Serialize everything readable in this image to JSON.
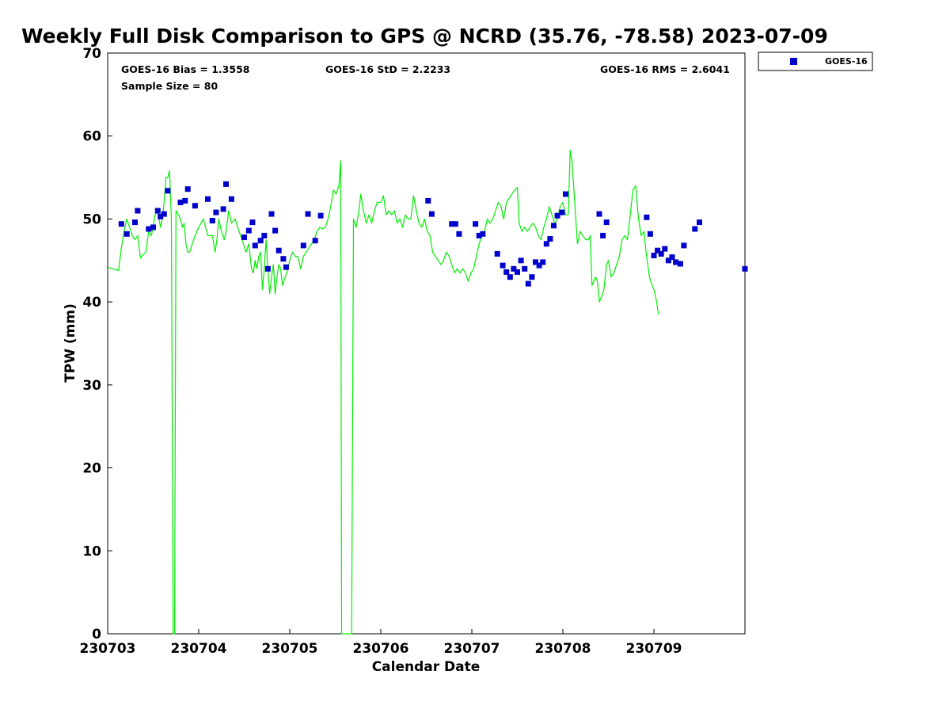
{
  "chart_data": {
    "type": "scatter",
    "title": "Weekly Full Disk Comparison to GPS @ NCRD (35.76, -78.58) 2023-07-09",
    "xlabel": "Calendar Date",
    "ylabel": "TPW (mm)",
    "xlim": [
      0,
      7
    ],
    "ylim": [
      0,
      70
    ],
    "x_ticks": [
      0,
      1,
      2,
      3,
      4,
      5,
      6
    ],
    "x_tick_labels": [
      "230703",
      "230704",
      "230705",
      "230706",
      "230707",
      "230708",
      "230709"
    ],
    "y_ticks": [
      0,
      10,
      20,
      30,
      40,
      50,
      60,
      70
    ],
    "y_tick_labels": [
      "0",
      "10",
      "20",
      "30",
      "40",
      "50",
      "60",
      "70"
    ],
    "legend_position": "outside-top-right",
    "stats": {
      "bias": "GOES-16 Bias = 1.3558",
      "std": "GOES-16 StD = 2.2233",
      "rms": "GOES-16 RMS = 2.6041",
      "sample_size": "Sample Size = 80"
    },
    "gps_line": {
      "color": "#00ee00",
      "points": [
        [
          0.0,
          44.2
        ],
        [
          0.05,
          44.0
        ],
        [
          0.12,
          43.8
        ],
        [
          0.15,
          46.5
        ],
        [
          0.18,
          48.5
        ],
        [
          0.21,
          50.0
        ],
        [
          0.24,
          49.0
        ],
        [
          0.27,
          48.0
        ],
        [
          0.3,
          47.5
        ],
        [
          0.33,
          48.0
        ],
        [
          0.36,
          45.3
        ],
        [
          0.39,
          45.7
        ],
        [
          0.42,
          46.0
        ],
        [
          0.45,
          48.5
        ],
        [
          0.48,
          48.0
        ],
        [
          0.5,
          49.0
        ],
        [
          0.52,
          50.5
        ],
        [
          0.55,
          51.0
        ],
        [
          0.58,
          49.0
        ],
        [
          0.6,
          50.0
        ],
        [
          0.62,
          52.0
        ],
        [
          0.64,
          55.0
        ],
        [
          0.66,
          55.0
        ],
        [
          0.68,
          55.8
        ],
        [
          0.7,
          50.0
        ],
        [
          0.72,
          0.0
        ],
        [
          0.735,
          0.0
        ],
        [
          0.75,
          51.0
        ],
        [
          0.78,
          50.5
        ],
        [
          0.8,
          50.0
        ],
        [
          0.82,
          49.0
        ],
        [
          0.84,
          49.5
        ],
        [
          0.86,
          47.0
        ],
        [
          0.88,
          46.0
        ],
        [
          0.9,
          46.0
        ],
        [
          0.93,
          47.0
        ],
        [
          0.96,
          48.0
        ],
        [
          1.0,
          49.0
        ],
        [
          1.05,
          50.0
        ],
        [
          1.1,
          48.0
        ],
        [
          1.15,
          48.0
        ],
        [
          1.18,
          46.0
        ],
        [
          1.2,
          47.5
        ],
        [
          1.22,
          50.0
        ],
        [
          1.25,
          48.5
        ],
        [
          1.28,
          47.5
        ],
        [
          1.3,
          48.5
        ],
        [
          1.33,
          51.0
        ],
        [
          1.36,
          49.5
        ],
        [
          1.4,
          50.0
        ],
        [
          1.43,
          49.0
        ],
        [
          1.46,
          48.0
        ],
        [
          1.49,
          47.0
        ],
        [
          1.52,
          46.0
        ],
        [
          1.55,
          47.0
        ],
        [
          1.58,
          44.0
        ],
        [
          1.6,
          43.5
        ],
        [
          1.62,
          45.0
        ],
        [
          1.64,
          44.0
        ],
        [
          1.66,
          45.5
        ],
        [
          1.68,
          46.0
        ],
        [
          1.7,
          41.5
        ],
        [
          1.72,
          44.0
        ],
        [
          1.74,
          47.5
        ],
        [
          1.76,
          44.0
        ],
        [
          1.78,
          41.0
        ],
        [
          1.8,
          43.0
        ],
        [
          1.82,
          44.5
        ],
        [
          1.84,
          41.0
        ],
        [
          1.86,
          43.0
        ],
        [
          1.88,
          44.5
        ],
        [
          1.9,
          44.0
        ],
        [
          1.92,
          42.0
        ],
        [
          1.95,
          43.0
        ],
        [
          1.98,
          44.0
        ],
        [
          2.0,
          45.0
        ],
        [
          2.03,
          46.0
        ],
        [
          2.06,
          45.5
        ],
        [
          2.09,
          45.5
        ],
        [
          2.12,
          44.0
        ],
        [
          2.15,
          45.5
        ],
        [
          2.18,
          46.0
        ],
        [
          2.21,
          46.5
        ],
        [
          2.24,
          47.0
        ],
        [
          2.27,
          47.5
        ],
        [
          2.3,
          48.5
        ],
        [
          2.33,
          49.0
        ],
        [
          2.36,
          48.8
        ],
        [
          2.39,
          49.0
        ],
        [
          2.42,
          50.0
        ],
        [
          2.45,
          51.5
        ],
        [
          2.48,
          53.5
        ],
        [
          2.51,
          53.0
        ],
        [
          2.54,
          54.0
        ],
        [
          2.56,
          57.0
        ],
        [
          2.57,
          0.0
        ],
        [
          2.68,
          0.0
        ],
        [
          2.7,
          50.0
        ],
        [
          2.73,
          49.0
        ],
        [
          2.76,
          51.0
        ],
        [
          2.78,
          53.0
        ],
        [
          2.81,
          51.0
        ],
        [
          2.84,
          49.5
        ],
        [
          2.87,
          50.5
        ],
        [
          2.9,
          49.5
        ],
        [
          2.93,
          51.0
        ],
        [
          2.96,
          52.0
        ],
        [
          3.0,
          52.0
        ],
        [
          3.03,
          52.8
        ],
        [
          3.06,
          50.5
        ],
        [
          3.09,
          51.0
        ],
        [
          3.12,
          50.5
        ],
        [
          3.15,
          51.0
        ],
        [
          3.18,
          49.5
        ],
        [
          3.21,
          50.0
        ],
        [
          3.24,
          49.0
        ],
        [
          3.27,
          50.5
        ],
        [
          3.3,
          50.0
        ],
        [
          3.33,
          50.0
        ],
        [
          3.36,
          52.8
        ],
        [
          3.39,
          51.0
        ],
        [
          3.42,
          49.5
        ],
        [
          3.45,
          49.0
        ],
        [
          3.48,
          50.0
        ],
        [
          3.51,
          48.5
        ],
        [
          3.54,
          48.0
        ],
        [
          3.57,
          46.0
        ],
        [
          3.6,
          45.5
        ],
        [
          3.63,
          45.0
        ],
        [
          3.66,
          44.5
        ],
        [
          3.69,
          45.0
        ],
        [
          3.72,
          46.0
        ],
        [
          3.75,
          45.5
        ],
        [
          3.78,
          44.5
        ],
        [
          3.81,
          43.5
        ],
        [
          3.84,
          44.0
        ],
        [
          3.87,
          43.5
        ],
        [
          3.9,
          44.0
        ],
        [
          3.93,
          43.5
        ],
        [
          3.96,
          42.5
        ],
        [
          3.99,
          43.5
        ],
        [
          4.02,
          44.0
        ],
        [
          4.05,
          45.5
        ],
        [
          4.08,
          47.0
        ],
        [
          4.11,
          48.0
        ],
        [
          4.14,
          48.5
        ],
        [
          4.17,
          50.0
        ],
        [
          4.2,
          49.5
        ],
        [
          4.23,
          50.0
        ],
        [
          4.26,
          51.0
        ],
        [
          4.29,
          52.0
        ],
        [
          4.32,
          51.5
        ],
        [
          4.35,
          50.0
        ],
        [
          4.38,
          52.0
        ],
        [
          4.41,
          52.5
        ],
        [
          4.44,
          53.0
        ],
        [
          4.47,
          53.5
        ],
        [
          4.5,
          53.8
        ],
        [
          4.52,
          49.5
        ],
        [
          4.55,
          48.5
        ],
        [
          4.58,
          49.0
        ],
        [
          4.61,
          48.5
        ],
        [
          4.64,
          49.0
        ],
        [
          4.67,
          49.5
        ],
        [
          4.7,
          49.0
        ],
        [
          4.73,
          48.0
        ],
        [
          4.76,
          47.5
        ],
        [
          4.79,
          49.0
        ],
        [
          4.82,
          50.0
        ],
        [
          4.85,
          51.5
        ],
        [
          4.88,
          50.5
        ],
        [
          4.91,
          49.5
        ],
        [
          4.94,
          50.0
        ],
        [
          4.97,
          51.5
        ],
        [
          5.0,
          52.0
        ],
        [
          5.03,
          50.5
        ],
        [
          5.06,
          50.5
        ],
        [
          5.08,
          58.3
        ],
        [
          5.1,
          57.0
        ],
        [
          5.13,
          52.0
        ],
        [
          5.16,
          47.0
        ],
        [
          5.19,
          48.5
        ],
        [
          5.22,
          48.0
        ],
        [
          5.25,
          47.5
        ],
        [
          5.28,
          47.5
        ],
        [
          5.3,
          48.0
        ],
        [
          5.32,
          42.0
        ],
        [
          5.34,
          42.5
        ],
        [
          5.36,
          43.0
        ],
        [
          5.38,
          42.5
        ],
        [
          5.4,
          40.0
        ],
        [
          5.42,
          40.5
        ],
        [
          5.45,
          41.5
        ],
        [
          5.48,
          44.5
        ],
        [
          5.5,
          45.0
        ],
        [
          5.53,
          43.0
        ],
        [
          5.56,
          43.5
        ],
        [
          5.59,
          44.5
        ],
        [
          5.62,
          45.5
        ],
        [
          5.65,
          47.5
        ],
        [
          5.68,
          48.0
        ],
        [
          5.71,
          47.5
        ],
        [
          5.74,
          50.5
        ],
        [
          5.77,
          53.5
        ],
        [
          5.8,
          54.0
        ],
        [
          5.83,
          50.0
        ],
        [
          5.86,
          48.0
        ],
        [
          5.89,
          48.5
        ],
        [
          5.92,
          45.5
        ],
        [
          5.95,
          43.0
        ],
        [
          5.98,
          42.0
        ],
        [
          6.0,
          41.5
        ],
        [
          6.03,
          40.0
        ],
        [
          6.05,
          38.5
        ]
      ]
    },
    "series": [
      {
        "name": "GOES-16",
        "color": "#0000cc",
        "points": [
          [
            0.15,
            49.4
          ],
          [
            0.21,
            48.2
          ],
          [
            0.3,
            49.6
          ],
          [
            0.33,
            51.0
          ],
          [
            0.45,
            48.8
          ],
          [
            0.5,
            49.0
          ],
          [
            0.55,
            51.0
          ],
          [
            0.58,
            50.3
          ],
          [
            0.62,
            50.6
          ],
          [
            0.66,
            53.4
          ],
          [
            0.8,
            52.0
          ],
          [
            0.85,
            52.2
          ],
          [
            0.88,
            53.6
          ],
          [
            0.96,
            51.6
          ],
          [
            1.1,
            52.4
          ],
          [
            1.15,
            49.8
          ],
          [
            1.19,
            50.8
          ],
          [
            1.27,
            51.2
          ],
          [
            1.3,
            54.2
          ],
          [
            1.36,
            52.4
          ],
          [
            1.5,
            47.8
          ],
          [
            1.55,
            48.6
          ],
          [
            1.59,
            49.6
          ],
          [
            1.62,
            46.8
          ],
          [
            1.68,
            47.4
          ],
          [
            1.72,
            48.0
          ],
          [
            1.76,
            44.0
          ],
          [
            1.8,
            50.6
          ],
          [
            1.84,
            48.6
          ],
          [
            1.88,
            46.2
          ],
          [
            1.93,
            45.2
          ],
          [
            1.96,
            44.2
          ],
          [
            2.15,
            46.8
          ],
          [
            2.2,
            50.6
          ],
          [
            2.28,
            47.4
          ],
          [
            2.34,
            50.4
          ],
          [
            3.52,
            52.2
          ],
          [
            3.56,
            50.6
          ],
          [
            3.78,
            49.4
          ],
          [
            3.82,
            49.4
          ],
          [
            3.86,
            48.2
          ],
          [
            4.04,
            49.4
          ],
          [
            4.08,
            48.0
          ],
          [
            4.12,
            48.2
          ],
          [
            4.28,
            45.8
          ],
          [
            4.34,
            44.4
          ],
          [
            4.38,
            43.6
          ],
          [
            4.42,
            43.0
          ],
          [
            4.46,
            44.0
          ],
          [
            4.5,
            43.6
          ],
          [
            4.54,
            45.0
          ],
          [
            4.58,
            44.0
          ],
          [
            4.62,
            42.2
          ],
          [
            4.66,
            43.0
          ],
          [
            4.7,
            44.8
          ],
          [
            4.74,
            44.4
          ],
          [
            4.78,
            44.8
          ],
          [
            4.82,
            47.0
          ],
          [
            4.86,
            47.6
          ],
          [
            4.9,
            49.2
          ],
          [
            4.94,
            50.4
          ],
          [
            4.99,
            50.8
          ],
          [
            5.03,
            53.0
          ],
          [
            5.4,
            50.6
          ],
          [
            5.44,
            48.0
          ],
          [
            5.48,
            49.6
          ],
          [
            5.92,
            50.2
          ],
          [
            5.96,
            48.2
          ],
          [
            6.0,
            45.6
          ],
          [
            6.04,
            46.2
          ],
          [
            6.08,
            45.8
          ],
          [
            6.12,
            46.4
          ],
          [
            6.16,
            45.0
          ],
          [
            6.2,
            45.4
          ],
          [
            6.24,
            44.8
          ],
          [
            6.29,
            44.6
          ],
          [
            6.33,
            46.8
          ],
          [
            6.45,
            48.8
          ],
          [
            6.5,
            49.6
          ],
          [
            7.0,
            44.0
          ]
        ]
      }
    ]
  }
}
